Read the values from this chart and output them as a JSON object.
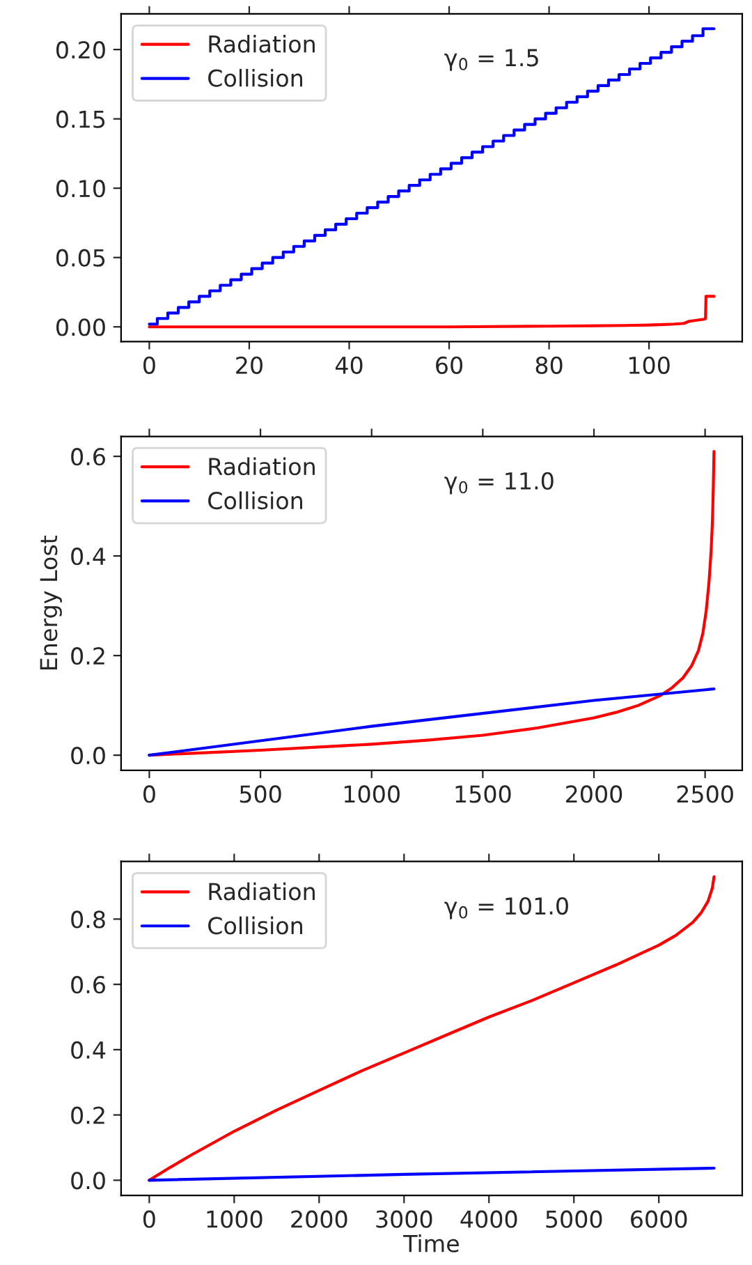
{
  "chart_data": [
    {
      "type": "line",
      "annotations": [
        "γ$_{0}$ = 1.5"
      ],
      "xlim": [
        -5.65,
        118.65
      ],
      "ylim": [
        -0.0106,
        0.2257
      ],
      "xticks": [
        0,
        20,
        40,
        60,
        80,
        100
      ],
      "yticks": [
        {
          "value": 0,
          "label": "0.00"
        },
        {
          "value": 0.05,
          "label": "0.05"
        },
        {
          "value": 0.1,
          "label": "0.10"
        },
        {
          "value": 0.15,
          "label": "0.15"
        },
        {
          "value": 0.2,
          "label": "0.20"
        }
      ],
      "legend": "top left",
      "grid": false,
      "series": [
        {
          "name": "Radiation",
          "color": "#ff0000",
          "x": [
            0,
            20,
            40,
            60,
            80,
            90,
            95,
            100,
            103,
            105,
            107,
            108,
            110,
            111,
            111.3,
            111.4,
            113
          ],
          "values": [
            0,
            0,
            0,
            0,
            0.0005,
            0.0008,
            0.001,
            0.0013,
            0.0017,
            0.002,
            0.0025,
            0.004,
            0.005,
            0.0055,
            0.006,
            0.022,
            0.022
          ]
        },
        {
          "name": "Collision",
          "type": "step",
          "color": "#0000ff",
          "x": [
            0,
            1.6,
            3.7,
            5.8,
            7.9,
            10,
            12.1,
            14.2,
            16.3,
            18.4,
            20.5,
            22.6,
            24.7,
            26.8,
            28.9,
            31,
            33.1,
            35.2,
            37.3,
            39.4,
            41.5,
            43.6,
            45.7,
            47.8,
            49.9,
            52,
            54.1,
            56.2,
            58.3,
            60.4,
            62.5,
            64.6,
            66.7,
            68.8,
            70.9,
            73,
            75.1,
            77.2,
            79.3,
            81.4,
            83.5,
            85.6,
            87.7,
            89.8,
            91.9,
            94,
            96.1,
            98.2,
            100.3,
            102.4,
            104.5,
            106.6,
            108.7,
            110.8,
            113
          ],
          "values": [
            0.002,
            0.006,
            0.01,
            0.014,
            0.018,
            0.022,
            0.026,
            0.03,
            0.034,
            0.038,
            0.042,
            0.046,
            0.05,
            0.054,
            0.058,
            0.062,
            0.066,
            0.07,
            0.074,
            0.078,
            0.082,
            0.086,
            0.09,
            0.094,
            0.098,
            0.102,
            0.106,
            0.11,
            0.114,
            0.118,
            0.122,
            0.126,
            0.13,
            0.134,
            0.138,
            0.142,
            0.146,
            0.15,
            0.154,
            0.158,
            0.162,
            0.166,
            0.17,
            0.174,
            0.178,
            0.182,
            0.186,
            0.19,
            0.194,
            0.198,
            0.202,
            0.206,
            0.21,
            0.215,
            0.215
          ]
        }
      ]
    },
    {
      "type": "line",
      "ylabel": "Energy Lost",
      "annotations": [
        "γ$_{0}$ = 11.0"
      ],
      "xlim": [
        -127,
        2667
      ],
      "ylim": [
        -0.0305,
        0.64
      ],
      "xticks": [
        0,
        500,
        1000,
        1500,
        2000,
        2500
      ],
      "yticks": [
        {
          "value": 0,
          "label": "0.0"
        },
        {
          "value": 0.2,
          "label": "0.2"
        },
        {
          "value": 0.4,
          "label": "0.4"
        },
        {
          "value": 0.6,
          "label": "0.6"
        }
      ],
      "legend": "top left",
      "grid": false,
      "series": [
        {
          "name": "Radiation",
          "color": "#ff0000",
          "x": [
            0,
            250,
            500,
            750,
            1000,
            1250,
            1500,
            1750,
            2000,
            2100,
            2200,
            2300,
            2350,
            2400,
            2440,
            2470,
            2490,
            2505,
            2518,
            2527,
            2533,
            2537,
            2540
          ],
          "values": [
            0,
            0.005,
            0.01,
            0.016,
            0.022,
            0.03,
            0.04,
            0.055,
            0.075,
            0.086,
            0.1,
            0.12,
            0.135,
            0.155,
            0.18,
            0.21,
            0.245,
            0.29,
            0.35,
            0.41,
            0.47,
            0.54,
            0.61
          ]
        },
        {
          "name": "Collision",
          "color": "#0000ff",
          "x": [
            0,
            1000,
            2000,
            2540
          ],
          "values": [
            0,
            0.058,
            0.11,
            0.133
          ]
        }
      ]
    },
    {
      "type": "line",
      "xlabel": "Time",
      "annotations": [
        "γ$_{0}$ = 101.0"
      ],
      "xlim": [
        -332,
        6982
      ],
      "ylim": [
        -0.0465,
        0.9765
      ],
      "xticks": [
        0,
        1000,
        2000,
        3000,
        4000,
        5000,
        6000
      ],
      "yticks": [
        {
          "value": 0,
          "label": "0.0"
        },
        {
          "value": 0.2,
          "label": "0.2"
        },
        {
          "value": 0.4,
          "label": "0.4"
        },
        {
          "value": 0.6,
          "label": "0.6"
        },
        {
          "value": 0.8,
          "label": "0.8"
        }
      ],
      "legend": "top left",
      "grid": false,
      "series": [
        {
          "name": "Radiation",
          "color": "#ff0000",
          "x": [
            0,
            250,
            500,
            1000,
            1500,
            2000,
            2500,
            3000,
            3500,
            4000,
            4500,
            5000,
            5500,
            6000,
            6200,
            6400,
            6500,
            6580,
            6630,
            6650
          ],
          "values": [
            0,
            0.04,
            0.078,
            0.15,
            0.215,
            0.275,
            0.335,
            0.39,
            0.445,
            0.5,
            0.55,
            0.605,
            0.66,
            0.72,
            0.75,
            0.79,
            0.82,
            0.855,
            0.895,
            0.93
          ]
        },
        {
          "name": "Collision",
          "color": "#0000ff",
          "x": [
            0,
            3000,
            6650
          ],
          "values": [
            0,
            0.018,
            0.037
          ]
        }
      ]
    }
  ]
}
